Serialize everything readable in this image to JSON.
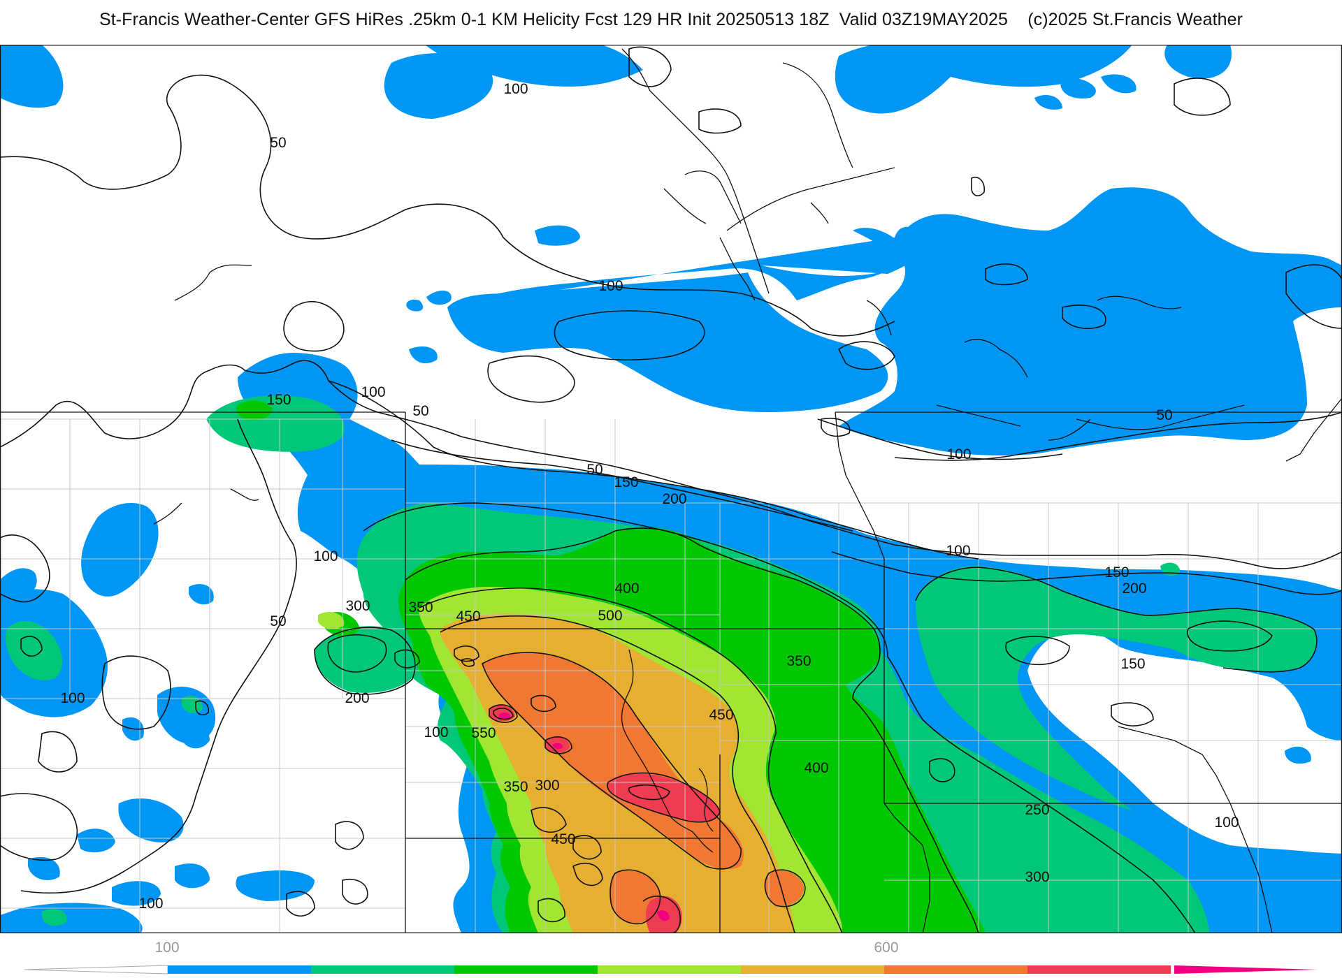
{
  "title": "St-Francis Weather-Center GFS HiRes .25km 0-1 KM Helicity Fcst 129 HR Init 20250513 18Z  Valid 03Z19MAY2025    (c)2025 St.Francis Weather",
  "colors": {
    "background": "#ffffff",
    "lines": "#111111",
    "borders": "#c8c8c8",
    "levels": [
      "#0096f5",
      "#00c878",
      "#00c800",
      "#a0e632",
      "#e6af32",
      "#f07832",
      "#f03c50",
      "#f00080"
    ]
  },
  "colorbar": {
    "ticks": [
      "100",
      "600"
    ],
    "levels": [
      100,
      150,
      200,
      250,
      300,
      350,
      400,
      450,
      500
    ]
  },
  "contour_labels": [
    "50",
    "100",
    "150",
    "200",
    "250",
    "300",
    "350",
    "400",
    "450",
    "500",
    "550"
  ],
  "labels": [
    {
      "text": "100",
      "lvl": 1
    },
    {
      "text": "50",
      "lvl": 0
    },
    {
      "text": "100",
      "lvl": 1
    },
    {
      "text": "150",
      "lvl": 2
    },
    {
      "text": "100",
      "lvl": 1
    },
    {
      "text": "50",
      "lvl": 0
    },
    {
      "text": "50",
      "lvl": 0
    },
    {
      "text": "150",
      "lvl": 2
    },
    {
      "text": "200",
      "lvl": 3
    },
    {
      "text": "100",
      "lvl": 1
    },
    {
      "text": "50",
      "lvl": 0
    },
    {
      "text": "100",
      "lvl": 1
    },
    {
      "text": "100",
      "lvl": 1
    },
    {
      "text": "150",
      "lvl": 2
    },
    {
      "text": "200",
      "lvl": 3
    },
    {
      "text": "150",
      "lvl": 2
    },
    {
      "text": "300",
      "lvl": 5
    },
    {
      "text": "350",
      "lvl": 6
    },
    {
      "text": "450",
      "lvl": 8
    },
    {
      "text": "400",
      "lvl": 7
    },
    {
      "text": "500",
      "lvl": 9
    },
    {
      "text": "350",
      "lvl": 6
    },
    {
      "text": "50",
      "lvl": 0
    },
    {
      "text": "100",
      "lvl": 1
    },
    {
      "text": "200",
      "lvl": 3
    },
    {
      "text": "100",
      "lvl": 1
    },
    {
      "text": "550",
      "lvl": 10
    },
    {
      "text": "450",
      "lvl": 8
    },
    {
      "text": "400",
      "lvl": 7
    },
    {
      "text": "350",
      "lvl": 6
    },
    {
      "text": "300",
      "lvl": 5
    },
    {
      "text": "450",
      "lvl": 8
    },
    {
      "text": "250",
      "lvl": 4
    },
    {
      "text": "300",
      "lvl": 5
    },
    {
      "text": "100",
      "lvl": 1
    },
    {
      "text": "100",
      "lvl": 1
    }
  ]
}
